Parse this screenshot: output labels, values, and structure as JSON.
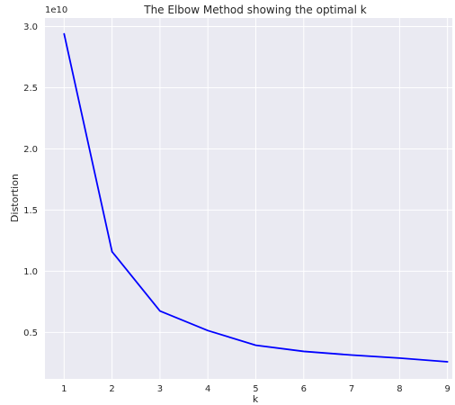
{
  "chart_data": {
    "type": "line",
    "title": "The Elbow Method showing the optimal k",
    "xlabel": "k",
    "ylabel": "Distortion",
    "y_offset_label": "1e10",
    "x": [
      1,
      2,
      3,
      4,
      5,
      6,
      7,
      8,
      9
    ],
    "series": [
      {
        "values": [
          29400000000,
          11600000000,
          6750000000,
          5150000000,
          3950000000,
          3450000000,
          3150000000,
          2900000000,
          2600000000
        ],
        "color": "#0000ff"
      }
    ],
    "xticks": [
      "1",
      "2",
      "3",
      "4",
      "5",
      "6",
      "7",
      "8",
      "9"
    ],
    "yticks": [
      "0.5",
      "1.0",
      "1.5",
      "2.0",
      "2.5",
      "3.0"
    ],
    "xlim": [
      0.6,
      9.1
    ],
    "ylim": [
      1200000000,
      30700000000
    ],
    "grid": true,
    "background_color": "#eaeaf2"
  }
}
